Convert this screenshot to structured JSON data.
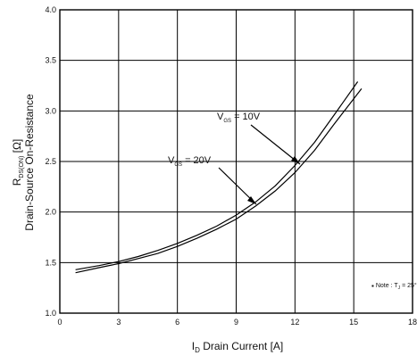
{
  "chart_data": {
    "type": "line",
    "xlabel": {
      "main": "I",
      "sub": "D",
      "rest": " Drain Current [A]"
    },
    "ylabel": {
      "line1": {
        "main": "R",
        "sub": "DS(ON)",
        "rest": " [Ω]"
      },
      "line2": "Drain-Source On-Resistance"
    },
    "xlim": [
      0,
      18
    ],
    "ylim": [
      1.0,
      4.0
    ],
    "xticks": [
      "0",
      "3",
      "6",
      "9",
      "12",
      "15",
      "18"
    ],
    "yticks": [
      "1.0",
      "1.5",
      "2.0",
      "2.5",
      "3.0",
      "3.5",
      "4.0"
    ],
    "grid": true,
    "series": [
      {
        "name": "V = 10V",
        "label_main": "V",
        "label_sub": "GS",
        "label_rest": " = 10V",
        "x": [
          0.8,
          2,
          3,
          4,
          5,
          6,
          7,
          8,
          9,
          10,
          11,
          12,
          13,
          14,
          15.2
        ],
        "y": [
          1.43,
          1.47,
          1.51,
          1.56,
          1.62,
          1.69,
          1.77,
          1.86,
          1.97,
          2.1,
          2.26,
          2.46,
          2.69,
          2.96,
          3.29
        ]
      },
      {
        "name": "V = 20V",
        "label_main": "V",
        "label_sub": "GS",
        "label_rest": " = 20V",
        "x": [
          0.8,
          2,
          3,
          4,
          5,
          6,
          7,
          8,
          9,
          10,
          11,
          12,
          13,
          14,
          15.4
        ],
        "y": [
          1.4,
          1.45,
          1.49,
          1.54,
          1.59,
          1.66,
          1.74,
          1.83,
          1.93,
          2.06,
          2.21,
          2.39,
          2.61,
          2.87,
          3.22
        ]
      }
    ],
    "note": {
      "prefix": "Note : T",
      "sub": "J",
      "suffix": " = 25°C"
    }
  }
}
